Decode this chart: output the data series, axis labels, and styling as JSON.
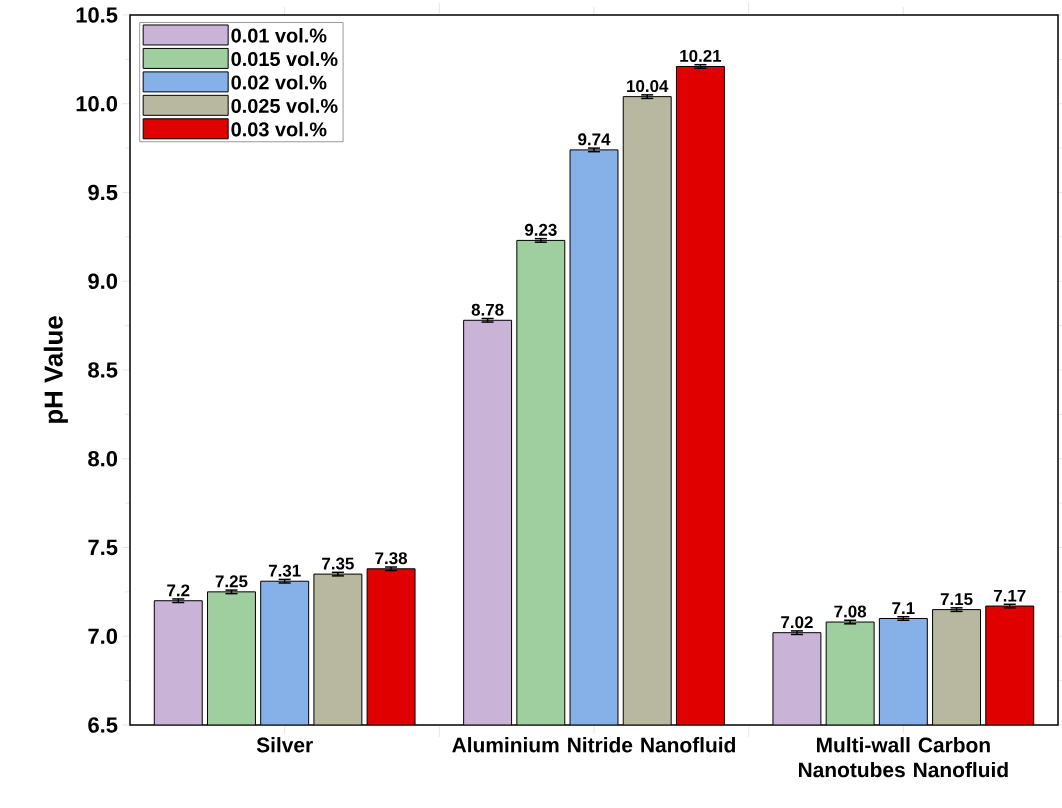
{
  "chart_data": {
    "type": "bar",
    "ylabel": "pH Value",
    "categories": [
      "Silver",
      "Aluminium Nitride Nanofluid",
      "Multi-wall Carbon Nanotubes Nanofluid"
    ],
    "series": [
      {
        "name": "0.01 vol.%",
        "color": "#c9b3d6",
        "values": [
          7.2,
          8.78,
          7.02
        ],
        "errors": [
          0.01,
          0.01,
          0.01
        ]
      },
      {
        "name": "0.015 vol.%",
        "color": "#9fcf9f",
        "values": [
          7.25,
          9.23,
          7.08
        ],
        "errors": [
          0.01,
          0.01,
          0.01
        ]
      },
      {
        "name": "0.02 vol.%",
        "color": "#86b0e8",
        "values": [
          7.31,
          9.74,
          7.1
        ],
        "errors": [
          0.01,
          0.01,
          0.01
        ]
      },
      {
        "name": "0.025 vol.%",
        "color": "#b8b7a0",
        "values": [
          7.35,
          10.04,
          7.15
        ],
        "errors": [
          0.01,
          0.01,
          0.01
        ]
      },
      {
        "name": "0.03 vol.%",
        "color": "#e00000",
        "values": [
          7.38,
          10.21,
          7.17
        ],
        "errors": [
          0.01,
          0.01,
          0.01
        ]
      }
    ],
    "ylim": [
      6.5,
      10.5
    ],
    "yticks": [
      6.5,
      {
        "value": 7.0,
        "label": "7.0"
      },
      7.5,
      {
        "value": 8.0,
        "label": "8.0"
      },
      8.5,
      {
        "value": 9.0,
        "label": "9.0"
      },
      9.5,
      {
        "value": 10.0,
        "label": "10.0"
      },
      10.5
    ],
    "data_labels": true,
    "legend": "top left",
    "grid": false
  }
}
